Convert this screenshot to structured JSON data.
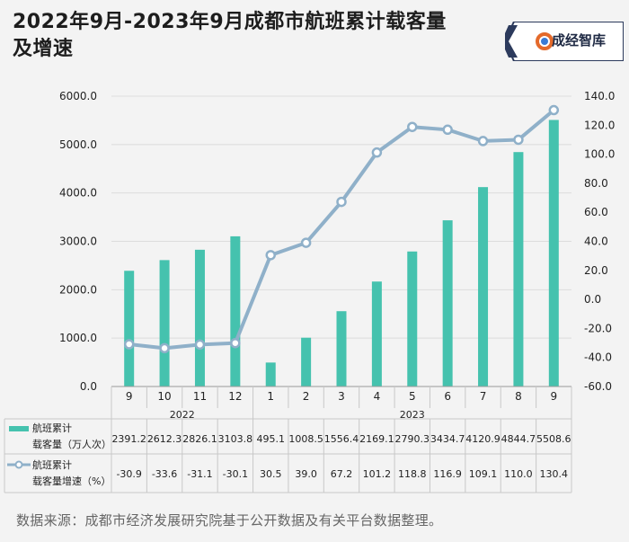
{
  "page": {
    "title_line1": "2022年9月-2023年9月成都市航班累计载客量",
    "title_line2": "及增速",
    "brand": "成经智库",
    "source": "数据来源：成都市经济发展研究院基于公开数据及有关平台数据整理。"
  },
  "colors": {
    "bar": "#45c2ae",
    "line": "#8fb0c9",
    "marker_fill": "#ffffff",
    "grid": "#dcdcdc"
  },
  "chart_data": {
    "type": "bar",
    "categories": [
      "9",
      "10",
      "11",
      "12",
      "1",
      "2",
      "3",
      "4",
      "5",
      "6",
      "7",
      "8",
      "9"
    ],
    "year_groups": [
      {
        "label": "2022",
        "count": 4
      },
      {
        "label": "2023",
        "count": 9
      }
    ],
    "series": [
      {
        "name": "航班累计载客量（万人次）",
        "legend_line1": "航班累计",
        "legend_line2": "载客量（万人次）",
        "type": "bar",
        "axis": "left",
        "values": [
          2391.2,
          2612.3,
          2826.1,
          3103.8,
          495.1,
          1008.5,
          1556.4,
          2169.1,
          2790.3,
          3434.7,
          4120.9,
          4844.7,
          5508.6
        ],
        "labels": [
          "2391.2",
          "2612.3",
          "2826.1",
          "3103.8",
          "495.1",
          "1008.5",
          "1556.4",
          "2169.1",
          "2790.3",
          "3434.7",
          "4120.9",
          "4844.7",
          "5508.6"
        ]
      },
      {
        "name": "航班累计载客量增速（%）",
        "legend_line1": "航班累计",
        "legend_line2": "载客量增速（%）",
        "type": "line",
        "axis": "right",
        "values": [
          -30.9,
          -33.6,
          -31.1,
          -30.1,
          30.5,
          39.0,
          67.2,
          101.2,
          118.8,
          116.9,
          109.1,
          110.0,
          130.4
        ],
        "labels": [
          "-30.9",
          "-33.6",
          "-31.1",
          "-30.1",
          "30.5",
          "39.0",
          "67.2",
          "101.2",
          "118.8",
          "116.9",
          "109.1",
          "110.0",
          "130.4"
        ]
      }
    ],
    "y_left": {
      "min": 0,
      "max": 6000,
      "step": 1000,
      "ticks": [
        "0.0",
        "1000.0",
        "2000.0",
        "3000.0",
        "4000.0",
        "5000.0",
        "6000.0"
      ]
    },
    "y_right": {
      "min": -60,
      "max": 140,
      "step": 20,
      "ticks": [
        "-60.0",
        "-40.0",
        "-20.0",
        "0.0",
        "20.0",
        "40.0",
        "60.0",
        "80.0",
        "100.0",
        "120.0",
        "140.0"
      ]
    },
    "grid": true,
    "legend": "data-table"
  }
}
